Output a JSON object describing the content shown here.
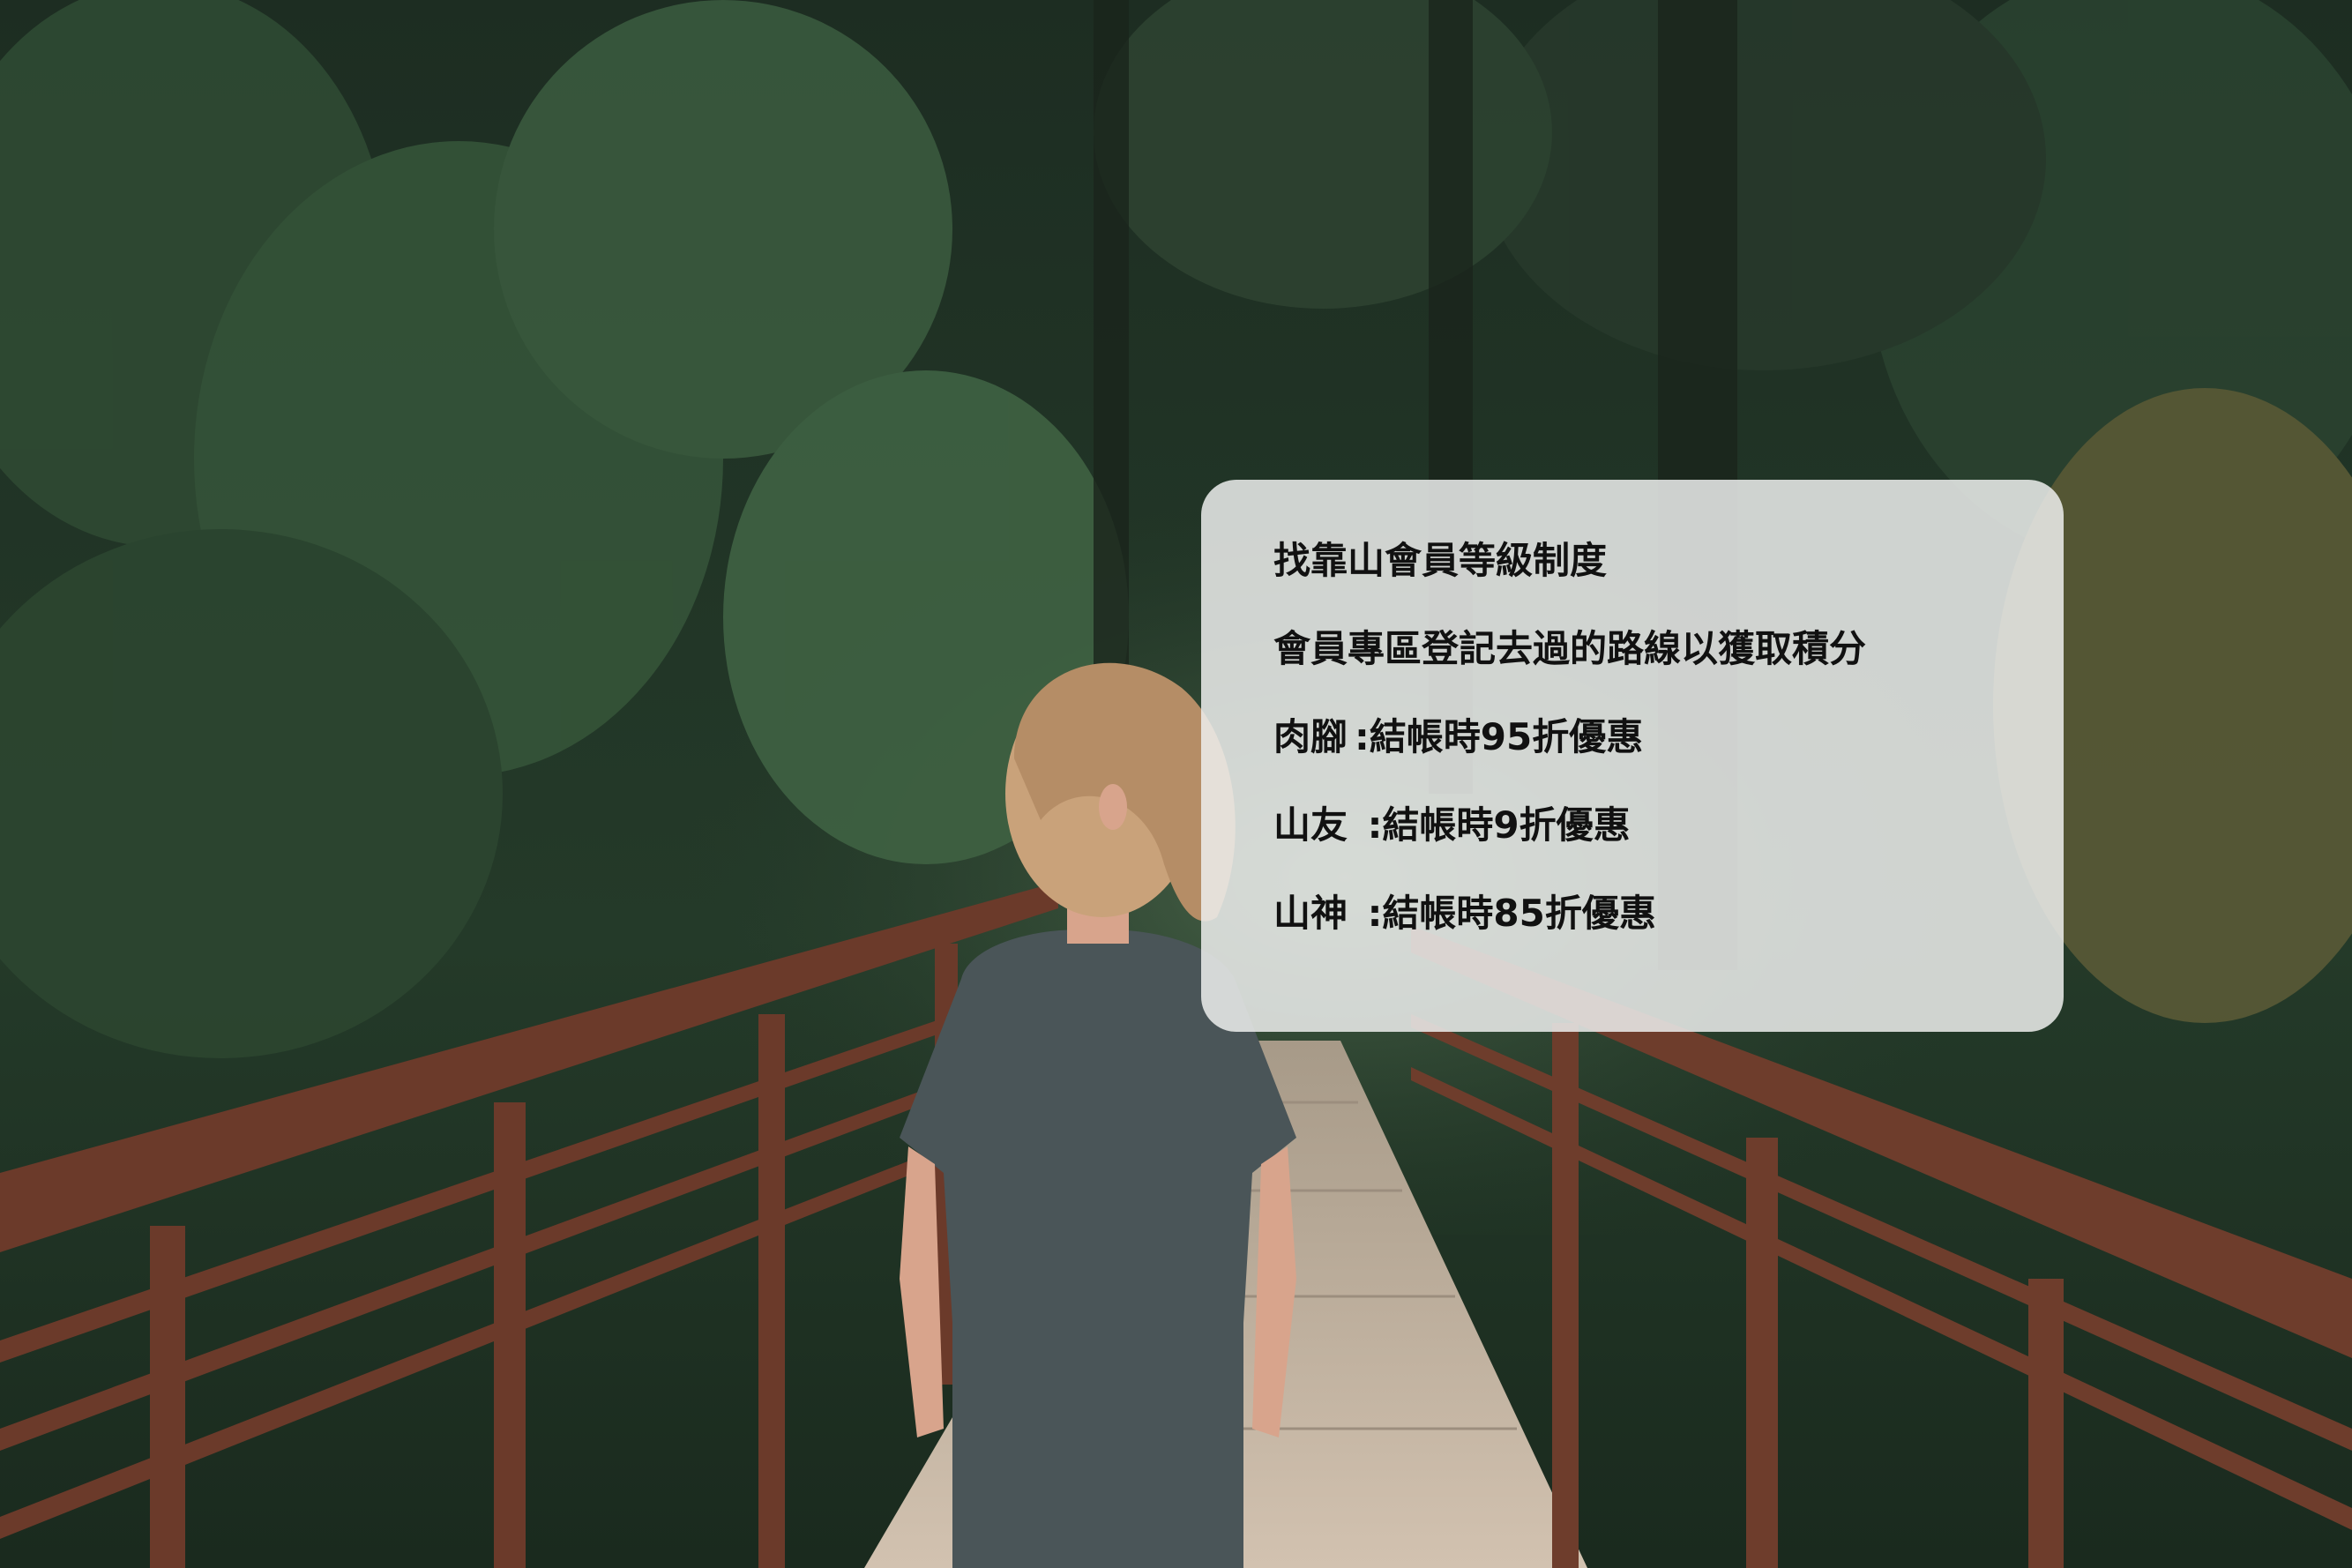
{
  "card": {
    "title": "找靠山會員等級制度",
    "subtitle": "會員專區登記去過的路線以獲取積分",
    "tiers": [
      {
        "name": "肉腳",
        "separator": ":",
        "benefit": "結帳時95折優惠"
      },
      {
        "name": "山友",
        "separator": " :",
        "benefit": "結帳時9折優惠"
      },
      {
        "name": "山神",
        "separator": " :",
        "benefit": "結帳時85折優惠"
      }
    ]
  },
  "colors": {
    "card_background": "#eceeec",
    "text": "#111111",
    "forest_dark": "#1c2a1f",
    "forest_mid": "#2f4a33",
    "railing": "#6b3a2a",
    "deck": "#c9b8a6",
    "shirt": "#4a5558",
    "hair": "#c9a27a",
    "skin": "#d8a48c"
  }
}
